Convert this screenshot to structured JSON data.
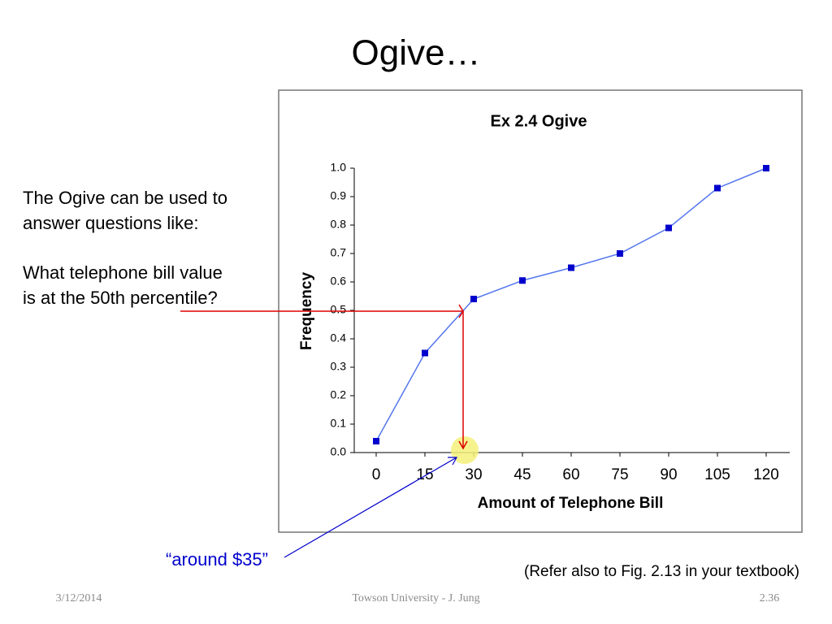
{
  "slide": {
    "title": "Ogive…",
    "body": [
      "The Ogive can be used to",
      "answer questions like:",
      "What telephone bill value",
      "is at the 50th percentile?"
    ],
    "annotation": "“around $35”",
    "note": "(Refer also to Fig. 2.13 in your textbook)",
    "footer": {
      "date": "3/12/2014",
      "center": "Towson University - J. Jung",
      "page": "2.36"
    }
  },
  "chart_data": {
    "type": "line",
    "title": "Ex 2.4 Ogive",
    "x_label": "Amount of Telephone Bill",
    "y_label": "Frequency",
    "x": [
      0,
      15,
      30,
      45,
      60,
      75,
      90,
      105,
      120
    ],
    "series": [
      {
        "color": "#0000cc",
        "values": [
          0.04,
          0.35,
          0.54,
          0.605,
          0.65,
          0.7,
          0.79,
          0.93,
          1.0
        ]
      }
    ],
    "xlim": [
      -6.75,
      127.25
    ],
    "xticks": [
      0,
      15,
      30,
      45,
      60,
      75,
      90,
      105,
      120
    ],
    "ylim": [
      0,
      1
    ],
    "yticks": [
      {
        "value": 0,
        "label": "0.0"
      },
      0.1,
      0.2,
      0.3,
      0.4,
      0.5,
      0.6,
      0.7,
      0.8,
      0.9,
      {
        "value": 1,
        "label": "1.0"
      }
    ]
  }
}
